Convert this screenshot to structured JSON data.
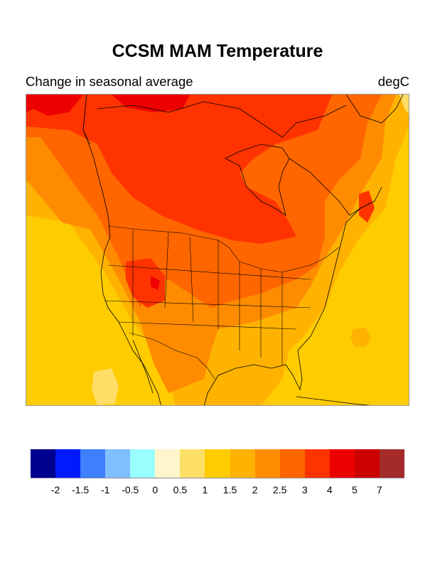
{
  "title": "CCSM MAM Temperature",
  "subtitle_left": "Change in seasonal average",
  "units": "degC",
  "map": {
    "region": "North America",
    "colors": {
      "c1": "#ffdd66",
      "c1_5": "#ffcc00",
      "c2": "#ffb300",
      "c2_5": "#ff8c00",
      "c3": "#ff6600",
      "c4": "#ff3300",
      "c5": "#ee0000",
      "coast": "#000000"
    }
  },
  "colorbar": {
    "swatches": [
      "#00008f",
      "#0019ff",
      "#3f80ff",
      "#80bfff",
      "#99ffff",
      "#fff5cc",
      "#ffe066",
      "#ffcc00",
      "#ffb300",
      "#ff8c00",
      "#ff6600",
      "#ff3300",
      "#ee0000",
      "#cc0000",
      "#a52a2a"
    ],
    "labels": [
      "-2",
      "-1.5",
      "-1",
      "-0.5",
      "0",
      "0.5",
      "1",
      "1.5",
      "2",
      "2.5",
      "3",
      "4",
      "5",
      "7"
    ]
  }
}
